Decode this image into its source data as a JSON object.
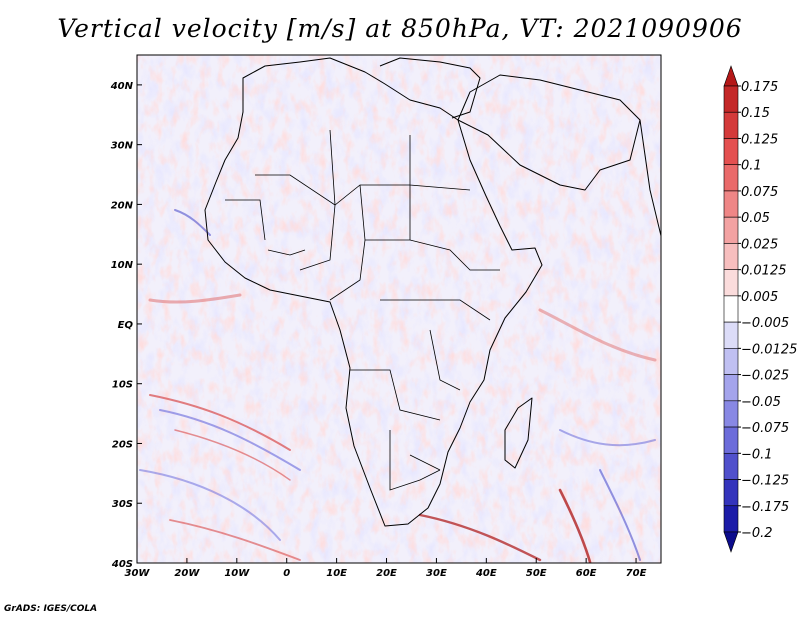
{
  "title": "Vertical velocity [m/s] at 850hPa, VT: 2021090906",
  "footer": "GrADS: IGES/COLA",
  "map": {
    "variable": "Vertical velocity",
    "units": "m/s",
    "level": "850hPa",
    "valid_time": "2021090906",
    "lon_range": [
      -30,
      75
    ],
    "lat_range": [
      -40,
      45
    ],
    "lon_ticks": [
      "30W",
      "20W",
      "10W",
      "0",
      "10E",
      "20E",
      "30E",
      "40E",
      "50E",
      "60E",
      "70E"
    ],
    "lon_tick_values": [
      -30,
      -20,
      -10,
      0,
      10,
      20,
      30,
      40,
      50,
      60,
      70
    ],
    "lat_ticks": [
      "40N",
      "30N",
      "20N",
      "10N",
      "EQ",
      "10S",
      "20S",
      "30S",
      "40S"
    ],
    "lat_tick_values": [
      40,
      30,
      20,
      10,
      0,
      -10,
      -20,
      -30,
      -40
    ]
  },
  "colorbar": {
    "labels": [
      "0.175",
      "0.15",
      "0.125",
      "0.1",
      "0.075",
      "0.05",
      "0.025",
      "0.0125",
      "0.005",
      "−0.005",
      "−0.0125",
      "−0.025",
      "−0.05",
      "−0.075",
      "−0.1",
      "−0.125",
      "−0.175",
      "−0.2"
    ],
    "colors": [
      "#b41818",
      "#c42828",
      "#d43a3a",
      "#e45050",
      "#ea6a6a",
      "#ef8686",
      "#f3a2a2",
      "#f7bebe",
      "#fbdcdc",
      "#ffffff",
      "#dcdcf8",
      "#c0c0f2",
      "#a4a4ec",
      "#8888e4",
      "#6c6cda",
      "#5050cc",
      "#3434bc",
      "#1c1ca8",
      "#0c0c8c"
    ]
  }
}
